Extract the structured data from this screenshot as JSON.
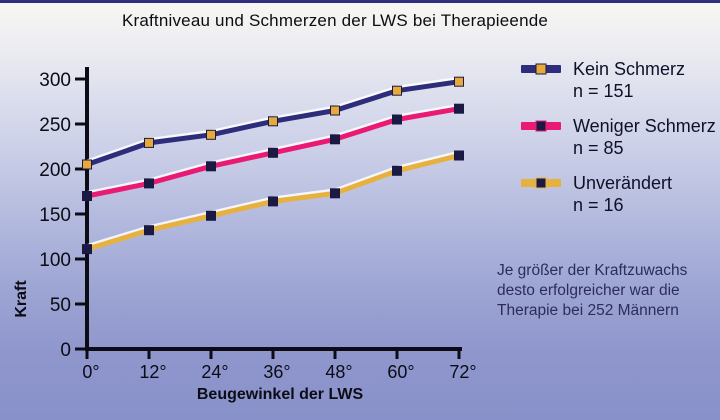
{
  "chart_data": {
    "type": "line",
    "title": "Kraftniveau und Schmerzen der LWS bei Therapieende",
    "xlabel": "Beugewinkel der LWS",
    "ylabel": "Kraft",
    "x": [
      0,
      12,
      24,
      36,
      48,
      60,
      72
    ],
    "x_tick_labels": [
      "0°",
      "12°",
      "24°",
      "36°",
      "48°",
      "60°",
      "72°"
    ],
    "y_ticks": [
      0,
      50,
      100,
      150,
      200,
      250,
      300
    ],
    "ylim": [
      0,
      300
    ],
    "grid": false,
    "legend_position": "right",
    "series": [
      {
        "name": "Kein Schmerz",
        "n_label": "n = 151",
        "color": "#2d2d7c",
        "marker_color": "#e8a93c",
        "values": [
          205,
          229,
          238,
          253,
          265,
          287,
          297
        ]
      },
      {
        "name": "Weniger Schmerz",
        "n_label": "n = 85",
        "color": "#ea1a74",
        "marker_color": "#1a1a44",
        "values": [
          170,
          184,
          203,
          218,
          233,
          255,
          267
        ]
      },
      {
        "name": "Unverändert",
        "n_label": "n = 16",
        "color": "#e6b13e",
        "marker_color": "#1a1a44",
        "values": [
          111,
          132,
          148,
          164,
          173,
          198,
          215
        ]
      }
    ],
    "annotation_lines": [
      "Je größer der Kraftzuwachs",
      "desto erfolgreicher war die",
      "Therapie bei 252 Männern"
    ],
    "axis_color": "#0c0c16",
    "highlight_color": "#ffffff"
  }
}
